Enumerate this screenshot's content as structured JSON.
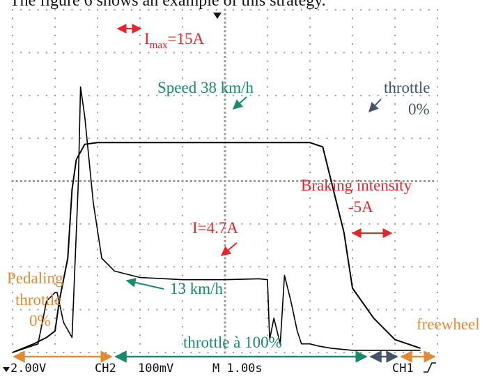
{
  "caption": "The figure 6 shows an example of this strategy.",
  "chart_data": {
    "type": "line",
    "series": [
      {
        "name": "",
        "x": [
          0.0,
          0.5,
          0.8,
          1.0,
          1.1,
          1.3,
          1.4,
          1.5,
          1.7,
          2.0,
          2.5,
          4.0,
          5.5,
          6.5,
          7.0,
          7.3,
          7.5,
          7.8,
          8.0,
          8.5,
          9.0,
          9.6
        ],
        "y": [
          0.0,
          0.2,
          0.35,
          0.5,
          1.2,
          2.2,
          3.8,
          4.5,
          4.86,
          4.9,
          4.9,
          4.9,
          4.9,
          4.9,
          4.9,
          4.8,
          4.0,
          2.8,
          1.5,
          0.8,
          0.3,
          0.1
        ]
      },
      {
        "name": "",
        "x": [
          0.0,
          0.6,
          0.8,
          1.0,
          1.05,
          1.2,
          1.4,
          1.55,
          1.6,
          1.7,
          1.9,
          2.1,
          2.4,
          3.0,
          4.0,
          5.0,
          5.8,
          6.0,
          6.05,
          6.15,
          6.3,
          6.4,
          6.55,
          6.7,
          6.8,
          7.0,
          7.2,
          7.5,
          8.0,
          8.5,
          9.0,
          9.6
        ],
        "y": [
          0.0,
          0.2,
          1.2,
          1.4,
          1.4,
          0.7,
          0.35,
          4.0,
          6.2,
          5.5,
          3.5,
          2.2,
          1.9,
          1.75,
          1.7,
          1.7,
          1.72,
          1.7,
          0.3,
          0.8,
          0.2,
          1.8,
          1.2,
          0.5,
          0.2,
          0.2,
          0.15,
          0.1,
          0.05,
          0.05,
          0.05,
          0.05
        ]
      }
    ],
    "annotations": {
      "imax": {
        "main": "I",
        "sub": "max",
        "rest": "=15A"
      },
      "speed": "Speed  38 km/h",
      "throttle_line1": "throttle",
      "throttle_line2": "0%",
      "braking_line1": "Braking intensity",
      "braking_line2": "-5A",
      "current": "I=4.7A",
      "speed13": "13 km/h",
      "pedaling_line1": "Pedaling",
      "pedaling_line2": "throttle",
      "pedaling_line3": "0%",
      "throttle100": "throttle à 100%",
      "freewheel": "freewheel"
    },
    "scope_status": {
      "ch1_scale": "2.00V",
      "ch2": "CH2",
      "ch2_scale": "100mV",
      "timebase": "M 1.00s",
      "ch1": "CH1"
    },
    "grid": true,
    "colors": {
      "red": "#e8242a",
      "green": "#1a8a6e",
      "slate": "#44556a",
      "orange": "#e38a35"
    }
  }
}
